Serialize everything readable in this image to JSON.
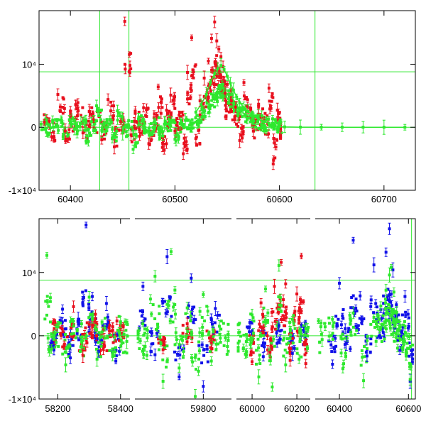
{
  "chart_data": [
    {
      "type": "scatter",
      "title": "",
      "xlabel": "",
      "ylabel": "",
      "xlim": [
        60370,
        60730
      ],
      "ylim": [
        -10000,
        18500
      ],
      "x_ticks": [
        60400,
        60500,
        60600,
        60700
      ],
      "x_tick_labels": [
        "60400",
        "60500",
        "60600",
        "60700"
      ],
      "y_ticks": [
        -10000,
        0,
        10000
      ],
      "y_tick_labels": [
        "-1×10⁴",
        "0",
        "10⁴"
      ],
      "grid": false,
      "reference_lines": {
        "horizontal": [
          0,
          8800
        ],
        "vertical": [
          60428,
          60456,
          60634
        ]
      },
      "series": [
        {
          "color": "#e8101e",
          "x": [
            60375,
            60382,
            60388,
            60395,
            60400,
            60405,
            60412,
            60418,
            60422,
            60430,
            60436,
            60442,
            60448,
            60452,
            60458,
            60462,
            60466,
            60470,
            60475,
            60480,
            60484,
            60488,
            60492,
            60496,
            60500,
            60504,
            60508,
            60512,
            60516,
            60520,
            60524,
            60528,
            60532,
            60535,
            60538,
            60540,
            60542,
            60544,
            60546,
            60548,
            60550,
            60554,
            60558,
            60562,
            60566,
            60570,
            60575,
            60580,
            60585,
            60590,
            60594,
            60598,
            60601
          ],
          "y": [
            800,
            -1500,
            5200,
            -600,
            1800,
            3600,
            -900,
            2500,
            1200,
            -2000,
            4400,
            -3100,
            900,
            16800,
            -1200,
            2200,
            -400,
            3100,
            -2600,
            1500,
            6400,
            -3200,
            2700,
            5100,
            -600,
            1900,
            -4200,
            8700,
            14200,
            -1800,
            4200,
            7800,
            10500,
            14100,
            16700,
            13700,
            12400,
            11200,
            9600,
            5400,
            6800,
            4200,
            3200,
            -2100,
            7100,
            2400,
            -600,
            3300,
            1100,
            6200,
            -5800,
            2700,
            -500
          ]
        },
        {
          "color": "#2ee82e",
          "x": [
            60372,
            60377,
            60383,
            60388,
            60393,
            60399,
            60404,
            60410,
            60415,
            60420,
            60425,
            60430,
            60435,
            60440,
            60445,
            60450,
            60455,
            60460,
            60465,
            60470,
            60475,
            60480,
            60485,
            60490,
            60495,
            60500,
            60505,
            60510,
            60515,
            60520,
            60525,
            60530,
            60534,
            60538,
            60541,
            60544,
            60547,
            60550,
            60553,
            60556,
            60559,
            60562,
            60566,
            60570,
            60575,
            60580,
            60585,
            60590,
            60595,
            60600,
            60605,
            60620,
            60640,
            60660,
            60680,
            60700,
            60720
          ],
          "y": [
            500,
            -800,
            900,
            200,
            -1500,
            1200,
            -300,
            600,
            -2200,
            900,
            3400,
            -500,
            700,
            -1800,
            2600,
            -900,
            400,
            -3500,
            1300,
            200,
            -600,
            800,
            -1200,
            500,
            300,
            -1900,
            600,
            1100,
            700,
            2400,
            3600,
            5200,
            7100,
            8500,
            9300,
            9800,
            9200,
            8100,
            7000,
            5900,
            4800,
            3900,
            3100,
            2500,
            1800,
            1300,
            900,
            600,
            300,
            150,
            60,
            20,
            10,
            5,
            3,
            2,
            1
          ]
        }
      ]
    },
    {
      "type": "scatter",
      "title": "",
      "xlabel": "",
      "ylabel": "",
      "x_axis": "broken",
      "x_segments": [
        {
          "xlim": [
            58140,
            58430
          ],
          "ticks": [
            58200,
            58400
          ],
          "tick_labels": [
            "58200",
            "58400"
          ]
        },
        {
          "xlim": [
            59630,
            59870
          ],
          "ticks": [
            59800
          ],
          "tick_labels": [
            "59800"
          ]
        },
        {
          "xlim": [
            59930,
            60260
          ],
          "ticks": [
            60000,
            60200
          ],
          "tick_labels": [
            "60000",
            "60200"
          ]
        },
        {
          "xlim": [
            60330,
            60620
          ],
          "ticks": [
            60400,
            60600
          ],
          "tick_labels": [
            "60400",
            "60600"
          ]
        }
      ],
      "ylim": [
        -10000,
        18500
      ],
      "y_ticks": [
        -10000,
        0,
        10000
      ],
      "y_tick_labels": [
        "-1×10⁴",
        "0",
        "10⁴"
      ],
      "grid": false,
      "reference_lines": {
        "horizontal": [
          0,
          8800
        ],
        "vertical": [
          60609
        ]
      },
      "series": [
        {
          "color": "#1010e8",
          "x": [
            58185,
            58215,
            58240,
            58265,
            58290,
            58310,
            58330,
            58355,
            58385,
            59650,
            59680,
            59710,
            59740,
            59770,
            59800,
            59830,
            59990,
            60050,
            60120,
            60180,
            60230,
            60380,
            60400,
            60420,
            60440,
            60460,
            60480,
            60500,
            60520,
            60535,
            60545,
            60555,
            60565,
            60575,
            60590,
            60605
          ],
          "y": [
            -1500,
            4200,
            -3500,
            2600,
            17500,
            6200,
            -2500,
            5100,
            -4000,
            7800,
            -3000,
            12500,
            -6500,
            9100,
            -8000,
            4300,
            2100,
            -3300,
            1600,
            -2800,
            900,
            -4500,
            8300,
            -1200,
            15100,
            6300,
            -3200,
            11200,
            4100,
            13200,
            16900,
            10400,
            4900,
            -2300,
            6200,
            -7200
          ]
        },
        {
          "color": "#e8101e",
          "x": [
            58190,
            58220,
            58250,
            58280,
            58300,
            58320,
            58345,
            58375,
            58400,
            59700,
            59760,
            59820,
            60000,
            60040,
            60080,
            60100,
            60130,
            60150,
            60170,
            60200,
            60220,
            60240
          ],
          "y": [
            2100,
            -1500,
            4600,
            -3100,
            1800,
            3400,
            -2100,
            900,
            1600,
            -2200,
            1900,
            -1100,
            -4100,
            5200,
            -2600,
            7800,
            11600,
            8200,
            -3900,
            6600,
            12600,
            -4400
          ]
        },
        {
          "color": "#2ee82e",
          "x": [
            58165,
            58180,
            58200,
            58225,
            58250,
            58275,
            58300,
            58325,
            58350,
            58375,
            58400,
            58420,
            59640,
            59660,
            59680,
            59700,
            59720,
            59740,
            59760,
            59780,
            59800,
            59820,
            59840,
            59860,
            59940,
            59970,
            60000,
            60030,
            60060,
            60090,
            60120,
            60150,
            60180,
            60210,
            60240,
            60350,
            60380,
            60410,
            60440,
            60470,
            60500,
            60520,
            60535,
            60545,
            60550,
            60558,
            60566,
            60575,
            60585,
            60595,
            60605
          ],
          "y": [
            12700,
            -2100,
            1400,
            -4600,
            2300,
            -1800,
            6100,
            -3700,
            1200,
            -2600,
            2200,
            -900,
            800,
            -3100,
            9400,
            -7200,
            13300,
            -5100,
            4400,
            -9600,
            6500,
            -4000,
            1500,
            -1700,
            500,
            -2900,
            3300,
            -6500,
            7400,
            -8100,
            11100,
            -4600,
            2600,
            -3700,
            1100,
            -600,
            2600,
            -5200,
            3600,
            -7100,
            2900,
            4700,
            7200,
            9600,
            10800,
            6900,
            3700,
            1400,
            -800,
            -2700,
            -6900
          ]
        }
      ]
    }
  ]
}
